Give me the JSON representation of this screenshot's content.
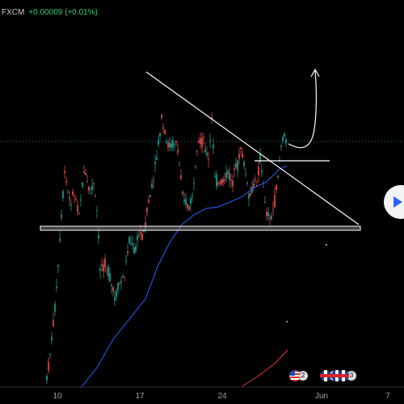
{
  "header": {
    "symbol": "FXCM",
    "change": "+0.00009 (+0.01%)"
  },
  "x_axis": {
    "labels": [
      "10",
      "17",
      "24",
      "Jun",
      "7"
    ]
  },
  "events": [
    {
      "flag": "us",
      "count": "2"
    },
    {
      "flag": "gb",
      "count": "3"
    },
    {
      "flag": "gb",
      "count": "2"
    },
    {
      "flag": "gb",
      "count": "3"
    }
  ],
  "colors": {
    "background": "#000000",
    "up_candle": "#26a69a",
    "down_candle": "#ef5350",
    "moving_average": "#2962ff",
    "slow_average": "#e53935",
    "drawings": "#ffffff",
    "price_line": "#26a69a",
    "play_icon": "#2962ff"
  },
  "icons": {
    "play": "play-icon"
  }
}
